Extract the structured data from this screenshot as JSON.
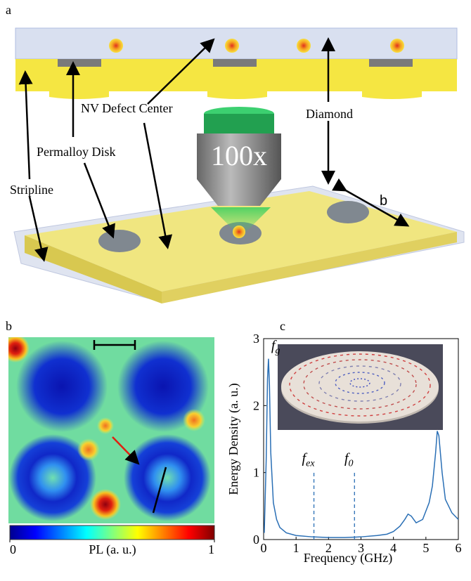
{
  "schematic": {
    "panel_label": "a",
    "labels": {
      "nv": "NV Defect Center",
      "diamond": "Diamond",
      "permalloy": "Permalloy Disk",
      "stripline": "Stripline",
      "objective": "100x",
      "dimension": "b"
    }
  },
  "pl_map": {
    "panel_label": "b",
    "colorbar": {
      "ticks": [
        0,
        1
      ],
      "label": "PL (a. u.)"
    }
  },
  "chart_data": {
    "type": "line",
    "panel_label": "c",
    "x": [
      0.02,
      0.08,
      0.12,
      0.15,
      0.18,
      0.22,
      0.3,
      0.4,
      0.5,
      0.7,
      1.0,
      1.5,
      2.0,
      2.5,
      3.0,
      3.5,
      3.8,
      4.0,
      4.2,
      4.35,
      4.45,
      4.55,
      4.7,
      4.9,
      5.1,
      5.2,
      5.3,
      5.35,
      5.4,
      5.5,
      5.6,
      5.8,
      6.0
    ],
    "values": [
      0.1,
      1.2,
      2.4,
      2.7,
      2.3,
      1.3,
      0.55,
      0.3,
      0.18,
      0.1,
      0.06,
      0.04,
      0.03,
      0.03,
      0.04,
      0.06,
      0.08,
      0.12,
      0.2,
      0.3,
      0.38,
      0.35,
      0.25,
      0.3,
      0.55,
      0.8,
      1.3,
      1.62,
      1.55,
      1.0,
      0.6,
      0.4,
      0.3
    ],
    "color": "#2a6fb5",
    "xlim": [
      0,
      6
    ],
    "ylim": [
      0,
      3
    ],
    "xticks": [
      0,
      1,
      2,
      3,
      4,
      5,
      6
    ],
    "yticks": [
      0,
      1,
      2,
      3
    ],
    "x_label": "Frequency (GHz)",
    "y_label": "Energy Density (a. u.)",
    "annotations": [
      {
        "text": "f",
        "sub": "g",
        "x": 0.15,
        "line": false
      },
      {
        "text": "f",
        "sub": "ex",
        "x": 1.55,
        "line": true
      },
      {
        "text": "f",
        "sub": "0",
        "x": 2.8,
        "line": true
      }
    ]
  }
}
